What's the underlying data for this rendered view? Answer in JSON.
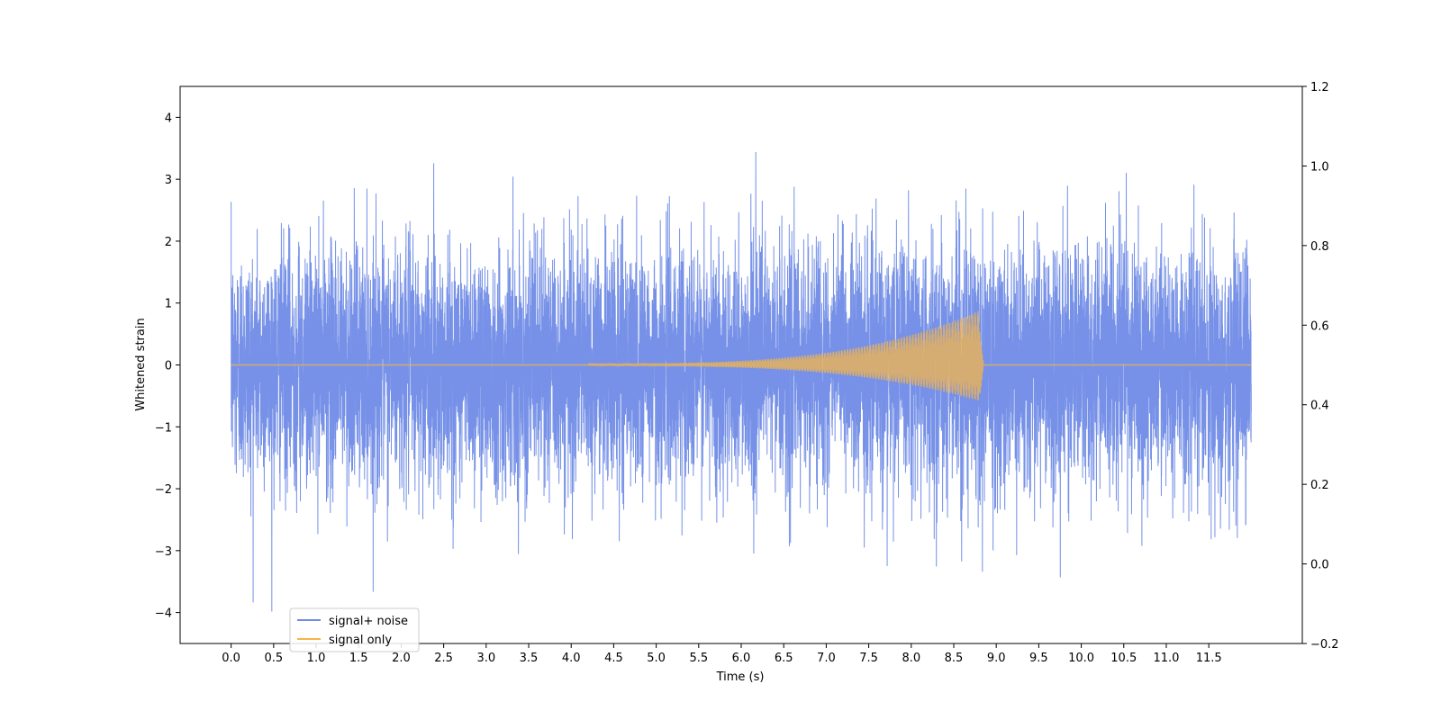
{
  "chart_data": {
    "type": "line",
    "xlabel": "Time (s)",
    "ylabel": "Whitened strain",
    "xlim": [
      -0.6,
      12.6
    ],
    "ylim": [
      -4.5,
      4.5
    ],
    "y2lim": [
      -0.2,
      1.2
    ],
    "x_ticks": [
      "0.0",
      "0.5",
      "1.0",
      "1.5",
      "2.0",
      "2.5",
      "3.0",
      "3.5",
      "4.0",
      "4.5",
      "5.0",
      "5.5",
      "6.0",
      "6.5",
      "7.0",
      "7.5",
      "8.0",
      "8.5",
      "9.0",
      "9.5",
      "10.0",
      "10.5",
      "11.0",
      "11.5"
    ],
    "y_ticks": [
      "−4",
      "−3",
      "−2",
      "−1",
      "0",
      "1",
      "2",
      "3",
      "4"
    ],
    "y_tick_values": [
      -4,
      -3,
      -2,
      -1,
      0,
      1,
      2,
      3,
      4
    ],
    "y2_ticks": [
      "−0.2",
      "0.0",
      "0.2",
      "0.4",
      "0.6",
      "0.8",
      "1.0",
      "1.2"
    ],
    "y2_tick_values": [
      -0.2,
      0.0,
      0.2,
      0.4,
      0.6,
      0.8,
      1.0,
      1.2
    ],
    "grid": false,
    "legend_position": "lower-left",
    "series": [
      {
        "name": "signal+ noise",
        "color": "#6f8be6",
        "x_range": [
          0.0,
          12.0
        ],
        "approx_amplitude": 4.1,
        "note": "Gaussian whitened noise plus chirp signal"
      },
      {
        "name": "signal only",
        "color": "#f5b54a",
        "x_range": [
          0.0,
          12.0
        ],
        "chirp_start": 4.2,
        "merger_time": 8.8,
        "peak_amplitude": 0.9,
        "min_amplitude": -0.6
      }
    ]
  }
}
